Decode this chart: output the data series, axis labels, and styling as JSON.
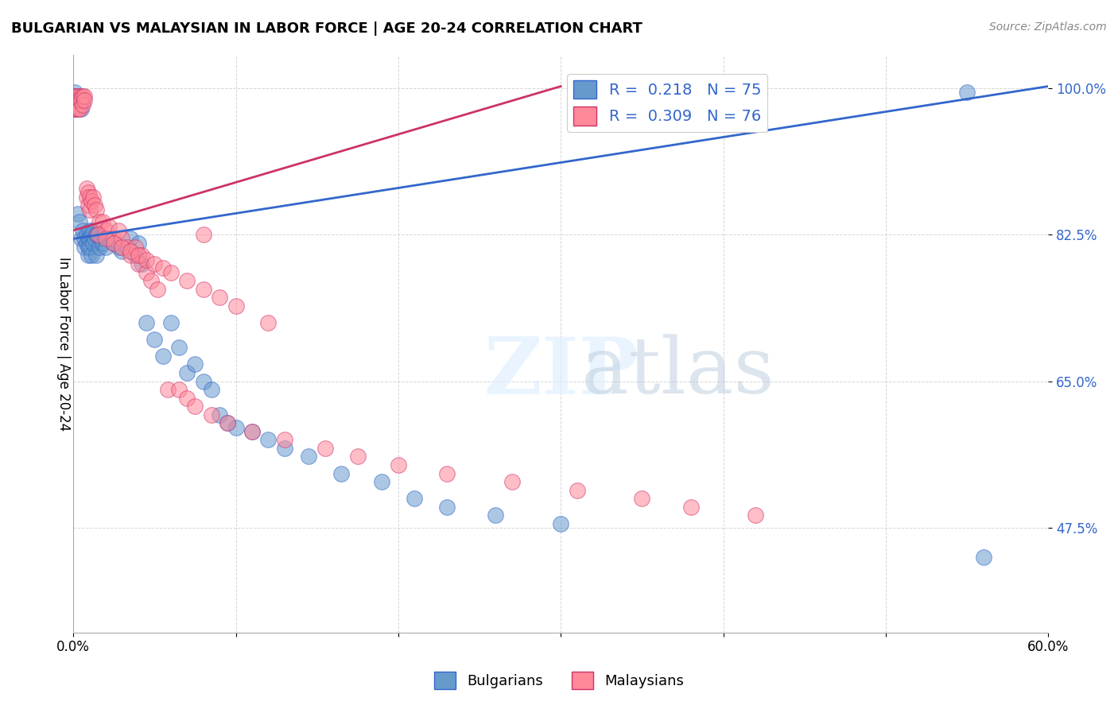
{
  "title": "BULGARIAN VS MALAYSIAN IN LABOR FORCE | AGE 20-24 CORRELATION CHART",
  "source": "Source: ZipAtlas.com",
  "ylabel": "In Labor Force | Age 20-24",
  "xlabel": "",
  "xlim": [
    0.0,
    0.6
  ],
  "ylim": [
    0.35,
    1.04
  ],
  "yticks": [
    0.475,
    0.65,
    0.825,
    1.0
  ],
  "ytick_labels": [
    "47.5%",
    "65.0%",
    "82.5%",
    "100.0%"
  ],
  "xticks": [
    0.0,
    0.1,
    0.2,
    0.3,
    0.4,
    0.5,
    0.6
  ],
  "xtick_labels": [
    "0.0%",
    "",
    "",
    "",
    "",
    "",
    "60.0%"
  ],
  "legend_r_blue": "R =  0.218",
  "legend_n_blue": "N = 75",
  "legend_r_pink": "R =  0.309",
  "legend_n_pink": "N = 76",
  "blue_color": "#6699CC",
  "pink_color": "#FF8899",
  "trend_blue": "#3366CC",
  "trend_pink": "#CC3366",
  "watermark": "ZIPatlas",
  "blue_scatter_x": [
    0.001,
    0.001,
    0.001,
    0.001,
    0.001,
    0.002,
    0.002,
    0.002,
    0.002,
    0.003,
    0.003,
    0.003,
    0.003,
    0.004,
    0.004,
    0.004,
    0.005,
    0.005,
    0.005,
    0.006,
    0.006,
    0.007,
    0.007,
    0.008,
    0.008,
    0.009,
    0.009,
    0.009,
    0.01,
    0.01,
    0.01,
    0.011,
    0.011,
    0.012,
    0.012,
    0.013,
    0.014,
    0.014,
    0.015,
    0.016,
    0.017,
    0.018,
    0.02,
    0.022,
    0.025,
    0.028,
    0.03,
    0.035,
    0.038,
    0.04,
    0.042,
    0.045,
    0.05,
    0.055,
    0.06,
    0.065,
    0.07,
    0.075,
    0.08,
    0.085,
    0.09,
    0.095,
    0.1,
    0.11,
    0.12,
    0.13,
    0.145,
    0.165,
    0.19,
    0.21,
    0.23,
    0.26,
    0.3,
    0.55,
    0.56
  ],
  "blue_scatter_y": [
    0.995,
    0.99,
    0.985,
    0.98,
    0.975,
    0.99,
    0.985,
    0.98,
    0.975,
    0.985,
    0.982,
    0.978,
    0.85,
    0.99,
    0.98,
    0.84,
    0.985,
    0.975,
    0.82,
    0.985,
    0.83,
    0.82,
    0.81,
    0.825,
    0.815,
    0.82,
    0.81,
    0.8,
    0.83,
    0.82,
    0.81,
    0.825,
    0.8,
    0.83,
    0.815,
    0.82,
    0.825,
    0.8,
    0.825,
    0.81,
    0.82,
    0.815,
    0.81,
    0.82,
    0.815,
    0.81,
    0.805,
    0.82,
    0.8,
    0.815,
    0.79,
    0.72,
    0.7,
    0.68,
    0.72,
    0.69,
    0.66,
    0.67,
    0.65,
    0.64,
    0.61,
    0.6,
    0.595,
    0.59,
    0.58,
    0.57,
    0.56,
    0.54,
    0.53,
    0.51,
    0.5,
    0.49,
    0.48,
    0.995,
    0.44
  ],
  "pink_scatter_x": [
    0.001,
    0.001,
    0.001,
    0.001,
    0.002,
    0.002,
    0.002,
    0.003,
    0.003,
    0.003,
    0.004,
    0.004,
    0.005,
    0.005,
    0.006,
    0.006,
    0.007,
    0.007,
    0.008,
    0.008,
    0.009,
    0.009,
    0.01,
    0.01,
    0.011,
    0.012,
    0.013,
    0.014,
    0.016,
    0.018,
    0.02,
    0.022,
    0.025,
    0.028,
    0.03,
    0.033,
    0.035,
    0.038,
    0.04,
    0.042,
    0.045,
    0.048,
    0.052,
    0.058,
    0.065,
    0.07,
    0.075,
    0.085,
    0.095,
    0.11,
    0.13,
    0.155,
    0.175,
    0.2,
    0.23,
    0.27,
    0.31,
    0.35,
    0.38,
    0.42,
    0.08,
    0.015,
    0.02,
    0.025,
    0.03,
    0.035,
    0.04,
    0.045,
    0.05,
    0.055,
    0.06,
    0.07,
    0.08,
    0.09,
    0.1,
    0.12
  ],
  "pink_scatter_y": [
    0.99,
    0.985,
    0.98,
    0.975,
    0.99,
    0.985,
    0.975,
    0.99,
    0.985,
    0.975,
    0.985,
    0.975,
    0.99,
    0.985,
    0.99,
    0.98,
    0.99,
    0.985,
    0.88,
    0.87,
    0.875,
    0.86,
    0.87,
    0.855,
    0.865,
    0.87,
    0.86,
    0.855,
    0.84,
    0.84,
    0.83,
    0.835,
    0.82,
    0.83,
    0.82,
    0.81,
    0.8,
    0.81,
    0.79,
    0.8,
    0.78,
    0.77,
    0.76,
    0.64,
    0.64,
    0.63,
    0.62,
    0.61,
    0.6,
    0.59,
    0.58,
    0.57,
    0.56,
    0.55,
    0.54,
    0.53,
    0.52,
    0.51,
    0.5,
    0.49,
    0.825,
    0.825,
    0.82,
    0.815,
    0.81,
    0.805,
    0.8,
    0.795,
    0.79,
    0.785,
    0.78,
    0.77,
    0.76,
    0.75,
    0.74,
    0.72
  ]
}
